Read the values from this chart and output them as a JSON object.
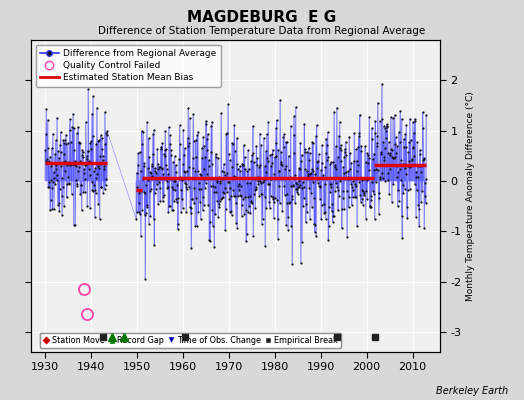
{
  "title": "MAGDEBURG  E G",
  "subtitle": "Difference of Station Temperature Data from Regional Average",
  "ylabel": "Monthly Temperature Anomaly Difference (°C)",
  "xlim": [
    1927,
    2016
  ],
  "ylim": [
    -3.4,
    2.8
  ],
  "yticks": [
    -3,
    -2,
    -1,
    0,
    1,
    2
  ],
  "xticks": [
    1930,
    1940,
    1950,
    1960,
    1970,
    1980,
    1990,
    2000,
    2010
  ],
  "background_color": "#d8d8d8",
  "plot_bg_color": "#f0f0f0",
  "line_color": "#3333ff",
  "dot_color": "#111111",
  "bias_color": "#dd0000",
  "station_move_color": "#cc0000",
  "record_gap_color": "#007700",
  "tobs_color": "#0000bb",
  "emp_break_color": "#222222",
  "seed": 42,
  "data_start": 1930,
  "data_end": 2013,
  "gap_start": 1943.5,
  "gap_end": 1949.8,
  "bias_segments": [
    {
      "start": 1930.0,
      "end": 1943.5,
      "value": 0.35
    },
    {
      "start": 1949.8,
      "end": 1951.0,
      "value": -0.18
    },
    {
      "start": 1951.0,
      "end": 2001.5,
      "value": 0.05
    },
    {
      "start": 2001.5,
      "end": 2013.0,
      "value": 0.32
    }
  ],
  "qc_failed": [
    {
      "year": 1938.5,
      "value": -2.15
    },
    {
      "year": 1939.2,
      "value": -2.65
    }
  ],
  "emp_breaks": [
    1942.5,
    1960.5,
    1993.5,
    2001.8
  ],
  "record_gaps": [
    1944.5,
    1947.2
  ],
  "station_moves": [],
  "tobs_changes": [],
  "marker_y": -3.1,
  "footer": "Berkeley Earth"
}
